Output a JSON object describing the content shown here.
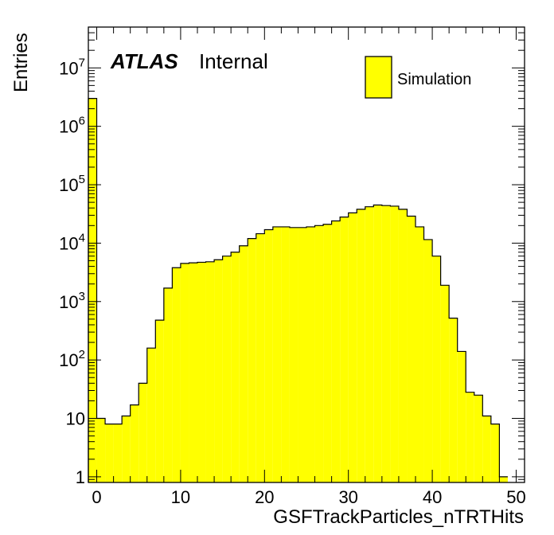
{
  "chart_data": {
    "type": "bar",
    "title": "",
    "xlabel": "GSFTrackParticles_nTRTHits",
    "ylabel": "Entries",
    "xlim": [
      -1,
      51
    ],
    "ylim": [
      0.8,
      50000000
    ],
    "y_scale": "log",
    "grid": false,
    "legend_position": "top-right",
    "annotations": {
      "experiment": "ATLAS",
      "status": "Internal"
    },
    "x_ticks": [
      0,
      10,
      20,
      30,
      40,
      50
    ],
    "x_tick_labels": [
      "0",
      "10",
      "20",
      "30",
      "40",
      "50"
    ],
    "y_ticks": [
      1,
      10,
      100,
      1000,
      10000,
      100000,
      1000000,
      10000000
    ],
    "y_tick_labels": [
      {
        "base": "1",
        "exp": ""
      },
      {
        "base": "10",
        "exp": ""
      },
      {
        "base": "10",
        "exp": "2"
      },
      {
        "base": "10",
        "exp": "3"
      },
      {
        "base": "10",
        "exp": "4"
      },
      {
        "base": "10",
        "exp": "5"
      },
      {
        "base": "10",
        "exp": "6"
      },
      {
        "base": "10",
        "exp": "7"
      }
    ],
    "bin_edges_start": -1,
    "bin_width": 1,
    "series": [
      {
        "name": "Simulation",
        "color": "#ffff00",
        "edge_color": "#000000",
        "values": [
          3000000,
          10,
          8,
          8,
          11,
          17,
          40,
          160,
          480,
          1700,
          3800,
          4500,
          4600,
          4700,
          4800,
          5200,
          6000,
          7000,
          9000,
          12000,
          14500,
          17000,
          19000,
          19000,
          18500,
          18500,
          19000,
          20000,
          21000,
          24000,
          28000,
          33000,
          38000,
          42000,
          45000,
          44000,
          43000,
          38000,
          29000,
          19000,
          11500,
          6000,
          1900,
          520,
          140,
          28,
          25,
          11,
          8,
          1
        ]
      }
    ]
  }
}
